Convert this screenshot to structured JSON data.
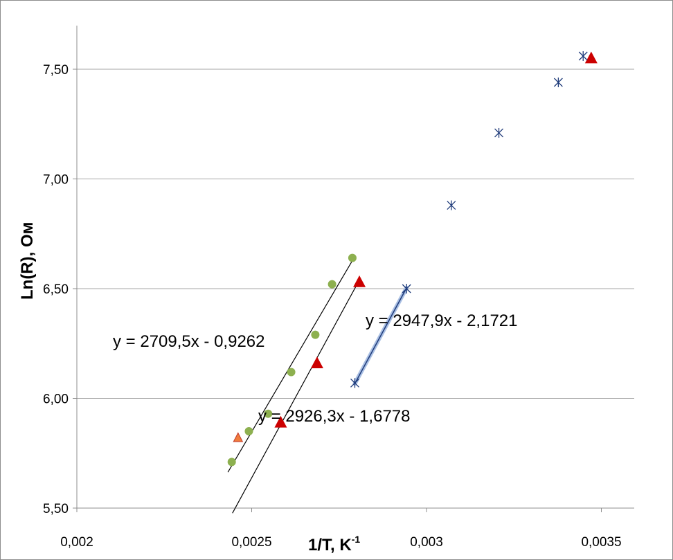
{
  "chart_data": {
    "type": "scatter",
    "title": "",
    "xlabel": "1/T,  K",
    "xlabel_sup": "-1",
    "ylabel": "Ln(R), Ом",
    "xlim": [
      0.002,
      0.0036
    ],
    "ylim": [
      5.5,
      7.75
    ],
    "x_ticks": [
      {
        "value": 0.002,
        "label": "0,002"
      },
      {
        "value": 0.0025,
        "label": "0,0025"
      },
      {
        "value": 0.003,
        "label": "0,003"
      },
      {
        "value": 0.0035,
        "label": "0,0035"
      }
    ],
    "y_ticks": [
      {
        "value": 5.5,
        "label": "5,50"
      },
      {
        "value": 6.0,
        "label": "6,00"
      },
      {
        "value": 6.5,
        "label": "6,50"
      },
      {
        "value": 7.0,
        "label": "7,00"
      },
      {
        "value": 7.5,
        "label": "7,50"
      }
    ],
    "grid": "horizontal",
    "legend": "none",
    "colors": {
      "circles": "#8db04f",
      "triangles": "#cc0000",
      "stars": "#1f3b7a",
      "small_triangle": "#f07c3c",
      "trendline": "#000000",
      "trendline_glow": "#a9bfe3",
      "grid": "#a6a6a6"
    },
    "series": [
      {
        "marker": "circle",
        "color": "#8db04f",
        "points": [
          {
            "x": 0.002443,
            "y": 5.71
          },
          {
            "x": 0.002492,
            "y": 5.85
          },
          {
            "x": 0.002547,
            "y": 5.93
          },
          {
            "x": 0.002613,
            "y": 6.12
          },
          {
            "x": 0.002682,
            "y": 6.29
          },
          {
            "x": 0.00273,
            "y": 6.52
          },
          {
            "x": 0.002788,
            "y": 6.64
          }
        ]
      },
      {
        "marker": "triangle",
        "color": "#cc0000",
        "points": [
          {
            "x": 0.002583,
            "y": 5.89
          },
          {
            "x": 0.002687,
            "y": 6.16
          },
          {
            "x": 0.002808,
            "y": 6.53
          },
          {
            "x": 0.003471,
            "y": 7.55
          }
        ]
      },
      {
        "marker": "star",
        "color": "#1f3b7a",
        "points": [
          {
            "x": 0.002795,
            "y": 6.07
          },
          {
            "x": 0.002943,
            "y": 6.5
          },
          {
            "x": 0.003071,
            "y": 6.88
          },
          {
            "x": 0.003207,
            "y": 7.21
          },
          {
            "x": 0.003377,
            "y": 7.44
          },
          {
            "x": 0.003448,
            "y": 7.56
          }
        ]
      },
      {
        "marker": "small-triangle",
        "color": "#f07c3c",
        "points": [
          {
            "x": 0.002461,
            "y": 5.82
          }
        ]
      }
    ],
    "trendlines": [
      {
        "equation": "y = 2709,5x - 0,9262",
        "slope": 2709.5,
        "intercept": -0.9262,
        "x_range": [
          0.002432,
          0.002788
        ],
        "glow": false
      },
      {
        "equation": "y = 2926,3x - 1,6778",
        "slope": 2926.3,
        "intercept": -1.6778,
        "x_range": [
          0.002445,
          0.00281
        ],
        "glow": false
      },
      {
        "equation": "y = 2947,9x - 2,1721",
        "slope": 2947.9,
        "intercept": -2.1721,
        "x_range": [
          0.002795,
          0.002943
        ],
        "glow": true
      }
    ]
  }
}
